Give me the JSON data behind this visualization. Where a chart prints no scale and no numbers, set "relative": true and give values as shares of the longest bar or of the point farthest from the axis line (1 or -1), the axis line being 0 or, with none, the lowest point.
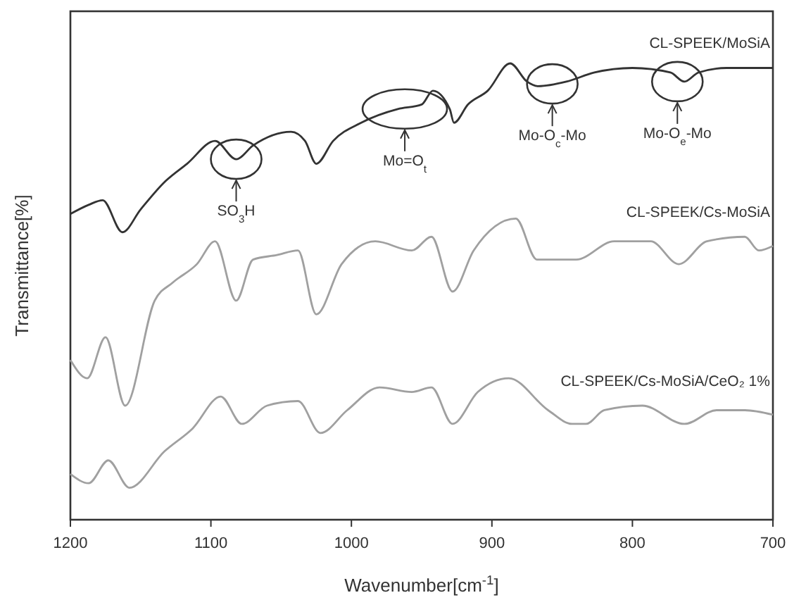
{
  "chart_data": {
    "type": "line",
    "relative": true,
    "xlabel": "Wavenumber[cm$^{-1}$]",
    "ylabel": "Transmittance[%]",
    "xlim": [
      1200,
      700
    ],
    "xticks": [
      1200,
      1100,
      1000,
      900,
      800,
      700
    ],
    "tick_labels": "x",
    "grid": false,
    "legend": false,
    "marker": "none",
    "line_style": "solid",
    "series": [
      {
        "name": "CL-SPEEK/MoSiA",
        "color": "#333333",
        "x": [
          1200,
          1187,
          1177,
          1163,
          1150,
          1133,
          1117,
          1097,
          1082,
          1070,
          1043,
          1033,
          1025,
          1013,
          993,
          967,
          950,
          942,
          930,
          927,
          917,
          903,
          887,
          875,
          867,
          847,
          827,
          800,
          773,
          763,
          753,
          733,
          713,
          700
        ],
        "values": [
          0.67,
          0.69,
          0.7,
          0.63,
          0.68,
          0.74,
          0.78,
          0.83,
          0.79,
          0.82,
          0.85,
          0.83,
          0.78,
          0.83,
          0.87,
          0.9,
          0.91,
          0.94,
          0.9,
          0.87,
          0.91,
          0.94,
          1,
          0.96,
          0.95,
          0.96,
          0.98,
          0.99,
          0.98,
          0.96,
          0.98,
          0.99,
          0.99,
          0.99
        ]
      },
      {
        "name": "CL-SPEEK/Cs-MoSiA",
        "color": "#a0a0a0",
        "x": [
          1200,
          1188,
          1175,
          1161,
          1140,
          1127,
          1110,
          1097,
          1082,
          1070,
          1053,
          1038,
          1025,
          1007,
          983,
          957,
          943,
          928,
          913,
          883,
          868,
          840,
          813,
          787,
          767,
          747,
          720,
          710,
          700
        ],
        "values": [
          0.35,
          0.31,
          0.4,
          0.25,
          0.48,
          0.52,
          0.56,
          0.61,
          0.48,
          0.57,
          0.58,
          0.59,
          0.45,
          0.56,
          0.61,
          0.59,
          0.62,
          0.5,
          0.59,
          0.66,
          0.57,
          0.57,
          0.61,
          0.61,
          0.56,
          0.61,
          0.62,
          0.59,
          0.6
        ]
      },
      {
        "name": "CL-SPEEK/Cs-MoSiA/CeO₂ 1%",
        "color": "#a0a0a0",
        "x": [
          1200,
          1187,
          1173,
          1158,
          1133,
          1113,
          1093,
          1078,
          1060,
          1038,
          1022,
          1003,
          980,
          957,
          943,
          928,
          910,
          888,
          860,
          843,
          833,
          820,
          793,
          763,
          740,
          720,
          700
        ],
        "values": [
          0.1,
          0.08,
          0.13,
          0.07,
          0.15,
          0.2,
          0.27,
          0.21,
          0.25,
          0.26,
          0.19,
          0.24,
          0.29,
          0.28,
          0.29,
          0.21,
          0.28,
          0.31,
          0.24,
          0.21,
          0.21,
          0.24,
          0.25,
          0.21,
          0.24,
          0.24,
          0.23
        ]
      }
    ],
    "annotations": [
      {
        "text": "SO$_{3}$H",
        "x": 1082,
        "y": 0.79
      },
      {
        "text": "Mo=O$_{t}$",
        "x": 962,
        "y": 0.9
      },
      {
        "text": "Mo-O$_{c}$-Mo",
        "x": 857,
        "y": 0.955
      },
      {
        "text": "Mo-O$_{e}$-Mo",
        "x": 768,
        "y": 0.96
      }
    ]
  }
}
